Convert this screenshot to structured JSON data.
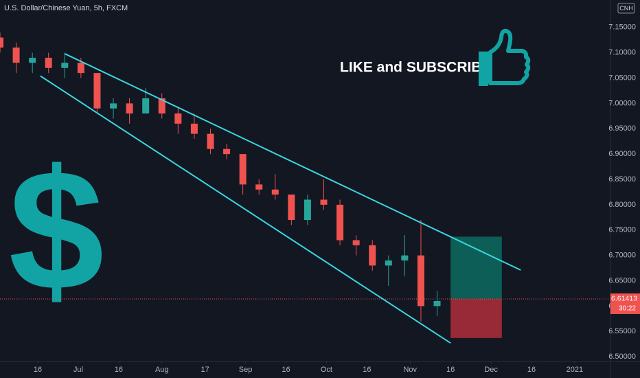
{
  "chart_data": {
    "type": "candlestick",
    "title": "U.S. Dollar/Chinese Yuan, 5h, FXCM",
    "symbol": "CNH",
    "call_to_action": "LIKE and SUBSCRIBE",
    "big_symbol": "$",
    "countdown": "30:22",
    "up_color": "#26a69a",
    "down_color": "#ef5350",
    "trendline_color": "#3ad6e0",
    "grid": false,
    "x": [
      "2020-06-02",
      "2020-06-08",
      "2020-06-14",
      "2020-06-20",
      "2020-06-26",
      "2020-07-02",
      "2020-07-08",
      "2020-07-14",
      "2020-07-20",
      "2020-07-26",
      "2020-08-01",
      "2020-08-07",
      "2020-08-13",
      "2020-08-19",
      "2020-08-25",
      "2020-08-31",
      "2020-09-06",
      "2020-09-12",
      "2020-09-18",
      "2020-09-24",
      "2020-09-30",
      "2020-10-06",
      "2020-10-12",
      "2020-10-18",
      "2020-10-24",
      "2020-10-30",
      "2020-11-05",
      "2020-11-11"
    ],
    "open": [
      7.13,
      7.11,
      7.08,
      7.09,
      7.07,
      7.08,
      7.06,
      6.99,
      7.0,
      6.98,
      7.01,
      6.98,
      6.96,
      6.94,
      6.91,
      6.9,
      6.84,
      6.83,
      6.82,
      6.77,
      6.81,
      6.8,
      6.73,
      6.72,
      6.68,
      6.69,
      6.7,
      6.6
    ],
    "high": [
      7.14,
      7.12,
      7.1,
      7.1,
      7.1,
      7.09,
      7.06,
      7.01,
      7.01,
      7.03,
      7.02,
      6.99,
      6.98,
      6.95,
      6.92,
      6.9,
      6.85,
      6.86,
      6.82,
      6.82,
      6.85,
      6.81,
      6.74,
      6.73,
      6.7,
      6.74,
      6.77,
      6.63
    ],
    "low": [
      7.1,
      7.06,
      7.06,
      7.06,
      7.05,
      7.05,
      6.98,
      6.97,
      6.96,
      6.98,
      6.97,
      6.94,
      6.93,
      6.9,
      6.89,
      6.82,
      6.82,
      6.81,
      6.76,
      6.76,
      6.79,
      6.72,
      6.7,
      6.67,
      6.64,
      6.66,
      6.57,
      6.58
    ],
    "close": [
      7.11,
      7.08,
      7.09,
      7.07,
      7.08,
      7.06,
      6.99,
      7.0,
      6.98,
      7.01,
      6.98,
      6.96,
      6.94,
      6.91,
      6.9,
      6.84,
      6.83,
      6.82,
      6.77,
      6.81,
      6.8,
      6.73,
      6.72,
      6.68,
      6.69,
      6.7,
      6.6,
      6.61
    ],
    "trendlines": [
      {
        "start": {
          "x": "2020-06-26",
          "y": 7.098
        },
        "end": {
          "x": "2020-12-12",
          "y": 6.671
        }
      },
      {
        "start": {
          "x": "2020-06-17",
          "y": 7.054
        },
        "end": {
          "x": "2020-11-16",
          "y": 6.527
        }
      }
    ],
    "position": {
      "start": "2020-11-16",
      "end": "2020-12-05",
      "entry": 6.61413,
      "target": 6.737,
      "stop": 6.537
    },
    "xlim": [
      "2020-06-02",
      "2021-01-14"
    ],
    "ylim": [
      6.492,
      7.204
    ],
    "xticks": [
      {
        "value": "2020-06-16",
        "label": "16"
      },
      {
        "value": "2020-07-01",
        "label": "Jul"
      },
      {
        "value": "2020-07-16",
        "label": "16"
      },
      {
        "value": "2020-08-01",
        "label": "Aug"
      },
      {
        "value": "2020-08-17",
        "label": "17"
      },
      {
        "value": "2020-09-01",
        "label": "Sep"
      },
      {
        "value": "2020-09-16",
        "label": "16"
      },
      {
        "value": "2020-10-01",
        "label": "Oct"
      },
      {
        "value": "2020-10-16",
        "label": "16"
      },
      {
        "value": "2020-11-01",
        "label": "Nov"
      },
      {
        "value": "2020-11-16",
        "label": "16"
      },
      {
        "value": "2020-12-01",
        "label": "Dec"
      },
      {
        "value": "2020-12-16",
        "label": "16"
      },
      {
        "value": "2021-01-01",
        "label": "2021"
      }
    ],
    "yticks": [
      {
        "value": 6.5,
        "label": "6.50000"
      },
      {
        "value": 6.55,
        "label": "6.55000"
      },
      {
        "value": 6.6,
        "label": "6.60000"
      },
      {
        "value": 6.65,
        "label": "6.65000"
      },
      {
        "value": 6.7,
        "label": "6.70000"
      },
      {
        "value": 6.75,
        "label": "6.75000"
      },
      {
        "value": 6.8,
        "label": "6.80000"
      },
      {
        "value": 6.85,
        "label": "6.85000"
      },
      {
        "value": 6.9,
        "label": "6.90000"
      },
      {
        "value": 6.95,
        "label": "6.95000"
      },
      {
        "value": 7.0,
        "label": "7.00000"
      },
      {
        "value": 7.05,
        "label": "7.05000"
      },
      {
        "value": 7.1,
        "label": "7.10000"
      },
      {
        "value": 7.15,
        "label": "7.15000"
      }
    ]
  }
}
